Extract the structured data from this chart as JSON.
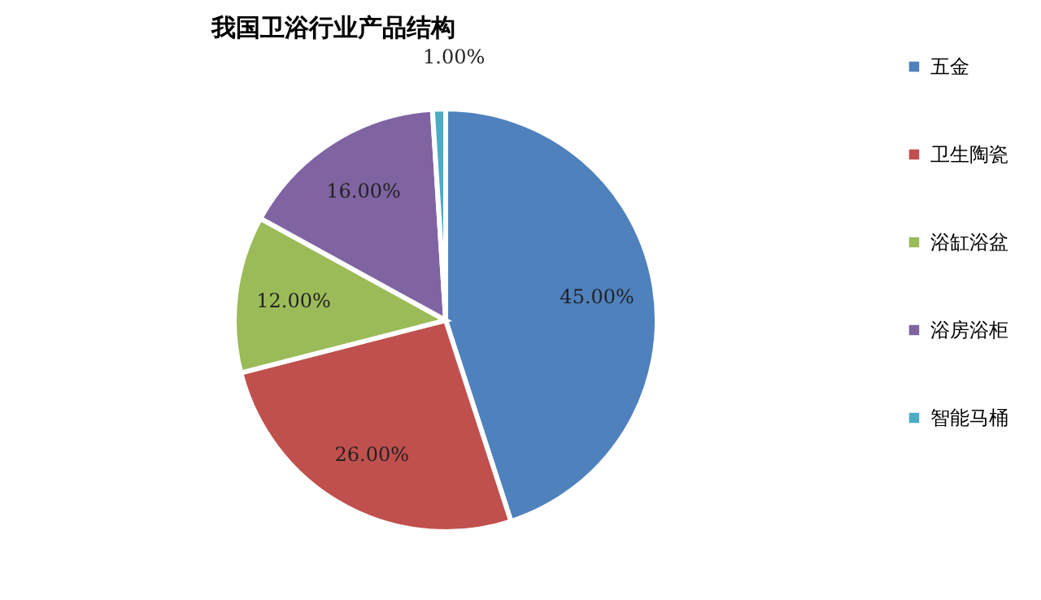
{
  "chart_data": {
    "type": "pie",
    "title": "我国卫浴行业产品结构",
    "categories": [
      "五金",
      "卫生陶瓷",
      "浴缸浴盆",
      "浴房浴柜",
      "智能马桶"
    ],
    "values": [
      45,
      26,
      12,
      16,
      1
    ],
    "colors": [
      "#4f81bd",
      "#c0504d",
      "#9bbb59",
      "#8064a2",
      "#4bacc6"
    ],
    "value_labels": [
      "45.00%",
      "26.00%",
      "12.00%",
      "16.00%",
      "1.00%"
    ],
    "legend": "right"
  }
}
